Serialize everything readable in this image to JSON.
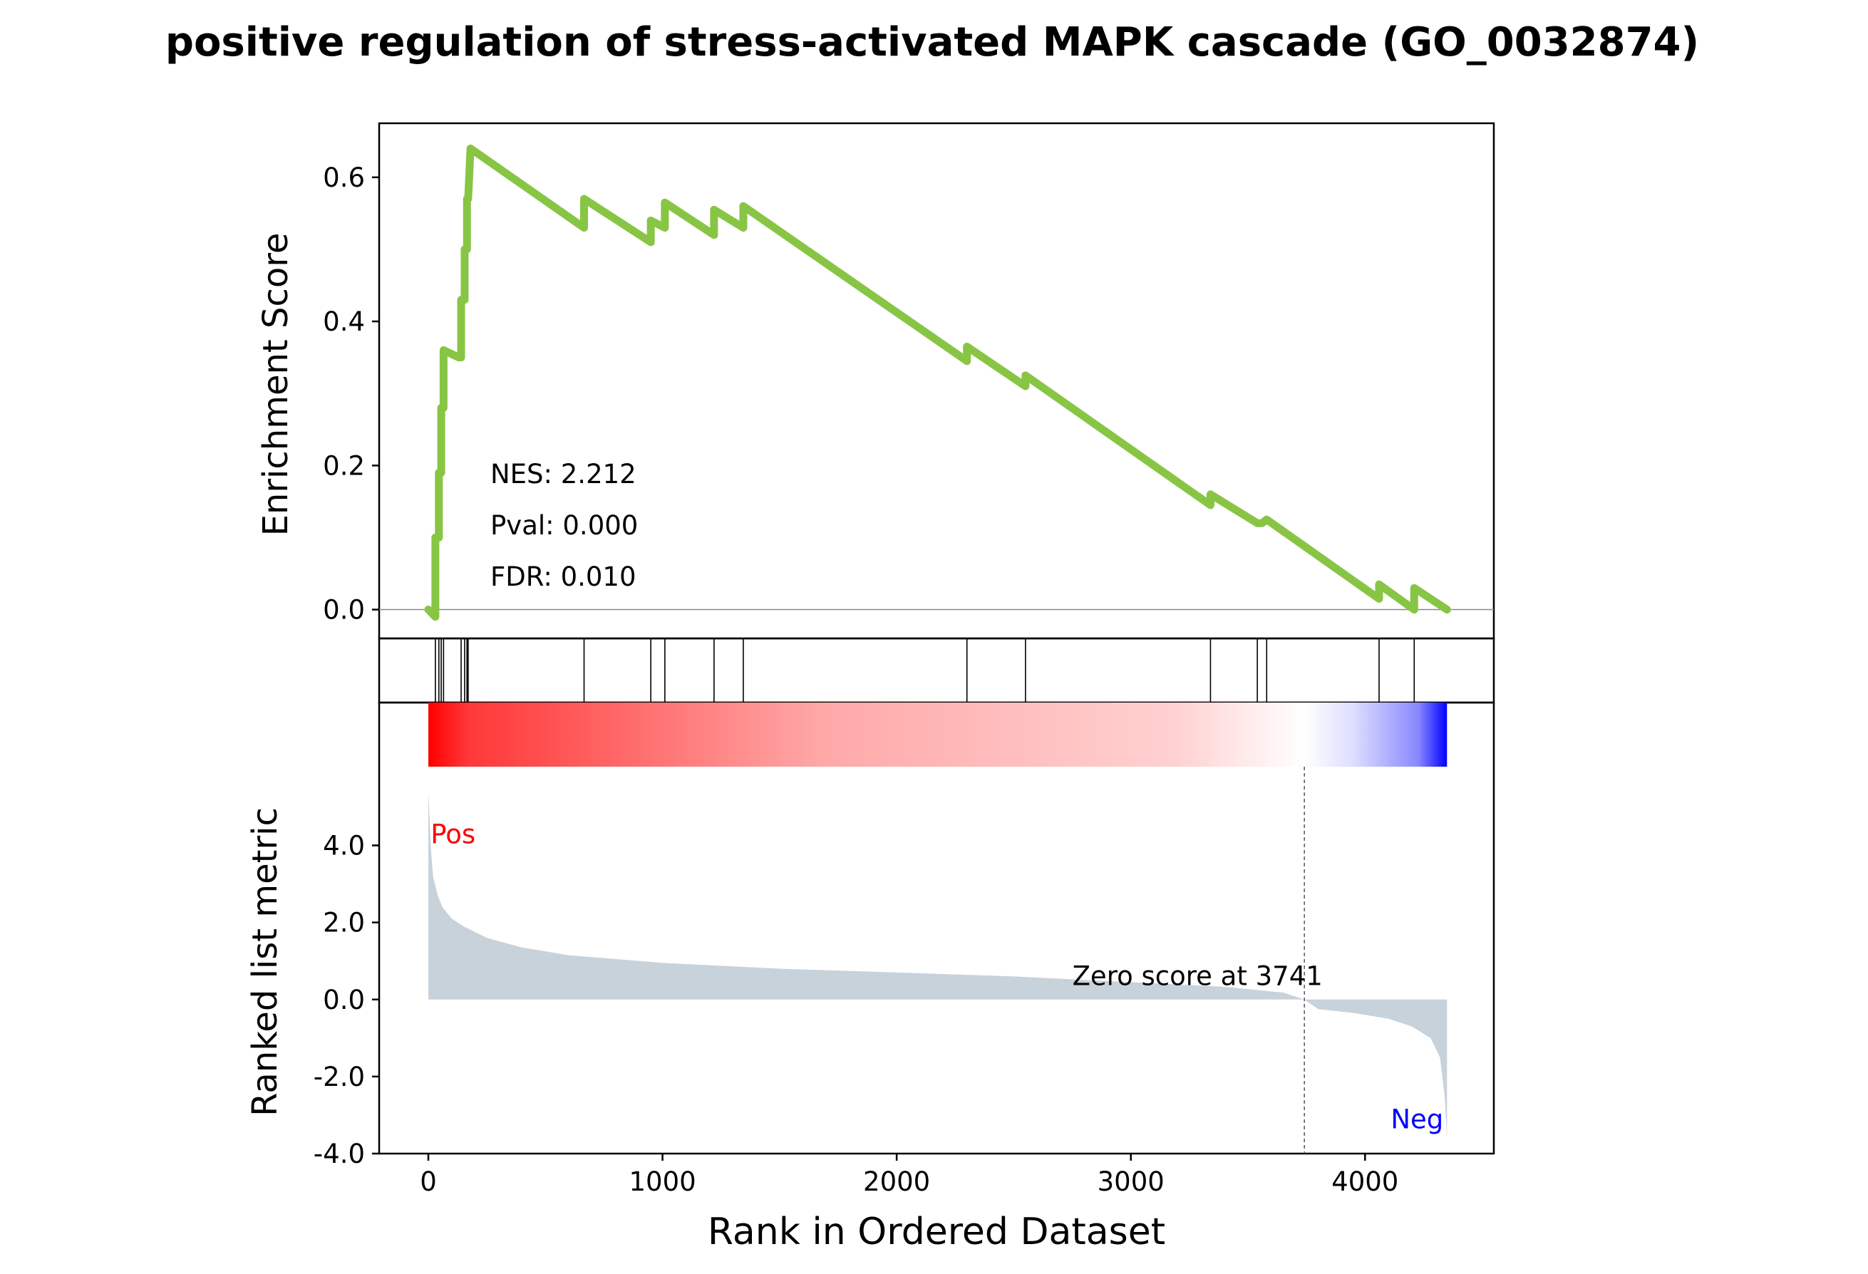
{
  "chart_data": {
    "type": "line",
    "title": "positive regulation of stress-activated MAPK cascade (GO_0032874)",
    "xlabel": "Rank in Ordered Dataset",
    "xlim": [
      -210,
      4550
    ],
    "xticks": [
      0,
      1000,
      2000,
      3000,
      4000
    ],
    "xtick_labels": [
      "0",
      "1000",
      "2000",
      "3000",
      "4000"
    ],
    "es_panel": {
      "ylabel": "Enrichment Score",
      "ylim": [
        -0.04,
        0.675
      ],
      "yticks": [
        0.0,
        0.2,
        0.4,
        0.6
      ],
      "ytick_labels": [
        "0.0",
        "0.2",
        "0.4",
        "0.6"
      ],
      "line_color": "#88c544",
      "baseline": 0.0,
      "stats": [
        "NES: 2.212",
        "Pval: 0.000",
        "FDR: 0.010"
      ],
      "points": [
        [
          0,
          0.0
        ],
        [
          30,
          -0.01
        ],
        [
          30,
          0.1
        ],
        [
          45,
          0.1
        ],
        [
          45,
          0.19
        ],
        [
          55,
          0.19
        ],
        [
          55,
          0.28
        ],
        [
          65,
          0.28
        ],
        [
          65,
          0.36
        ],
        [
          130,
          0.35
        ],
        [
          140,
          0.35
        ],
        [
          140,
          0.43
        ],
        [
          155,
          0.43
        ],
        [
          155,
          0.5
        ],
        [
          165,
          0.5
        ],
        [
          165,
          0.57
        ],
        [
          170,
          0.57
        ],
        [
          180,
          0.64
        ],
        [
          665,
          0.53
        ],
        [
          665,
          0.57
        ],
        [
          950,
          0.51
        ],
        [
          950,
          0.54
        ],
        [
          1010,
          0.53
        ],
        [
          1010,
          0.565
        ],
        [
          1220,
          0.52
        ],
        [
          1220,
          0.555
        ],
        [
          1345,
          0.53
        ],
        [
          1345,
          0.56
        ],
        [
          2300,
          0.345
        ],
        [
          2300,
          0.365
        ],
        [
          2550,
          0.31
        ],
        [
          2550,
          0.325
        ],
        [
          3340,
          0.145
        ],
        [
          3340,
          0.16
        ],
        [
          3540,
          0.12
        ],
        [
          3560,
          0.12
        ],
        [
          3580,
          0.125
        ],
        [
          4060,
          0.015
        ],
        [
          4060,
          0.035
        ],
        [
          4210,
          0.0
        ],
        [
          4210,
          0.03
        ],
        [
          4350,
          0.0
        ]
      ]
    },
    "hits": [
      30,
      45,
      55,
      65,
      140,
      155,
      165,
      170,
      665,
      950,
      1010,
      1220,
      1345,
      2300,
      2550,
      3340,
      3540,
      3580,
      4060,
      4210
    ],
    "color_bar": {
      "range": [
        0,
        4350
      ],
      "zero_at": 3741,
      "pos_color": "#ff0000",
      "neg_color": "#0000ff"
    },
    "metric_panel": {
      "ylabel": "Ranked list metric",
      "ylim": [
        -4.0,
        5.6
      ],
      "yticks": [
        4.0,
        2.0,
        0.0,
        -2.0,
        -4.0
      ],
      "ytick_labels": [
        "4.0",
        "2.0",
        "0.0",
        "-2.0",
        "-4.0"
      ],
      "fill_color": "#c8d2db",
      "points": [
        [
          0,
          5.4
        ],
        [
          10,
          4.0
        ],
        [
          20,
          3.2
        ],
        [
          40,
          2.7
        ],
        [
          60,
          2.4
        ],
        [
          100,
          2.1
        ],
        [
          150,
          1.9
        ],
        [
          250,
          1.6
        ],
        [
          400,
          1.35
        ],
        [
          600,
          1.15
        ],
        [
          1000,
          0.95
        ],
        [
          1500,
          0.8
        ],
        [
          2000,
          0.7
        ],
        [
          2500,
          0.6
        ],
        [
          3000,
          0.45
        ],
        [
          3400,
          0.33
        ],
        [
          3650,
          0.18
        ],
        [
          3741,
          0.0
        ],
        [
          3800,
          -0.25
        ],
        [
          3950,
          -0.35
        ],
        [
          4100,
          -0.5
        ],
        [
          4200,
          -0.7
        ],
        [
          4280,
          -1.0
        ],
        [
          4320,
          -1.5
        ],
        [
          4340,
          -2.5
        ],
        [
          4350,
          -3.6
        ]
      ],
      "zero_annotation": "Zero score at 3741",
      "pos_label": "Pos",
      "neg_label": "Neg",
      "pos_label_color": "#ff0000",
      "neg_label_color": "#0000ff"
    }
  }
}
